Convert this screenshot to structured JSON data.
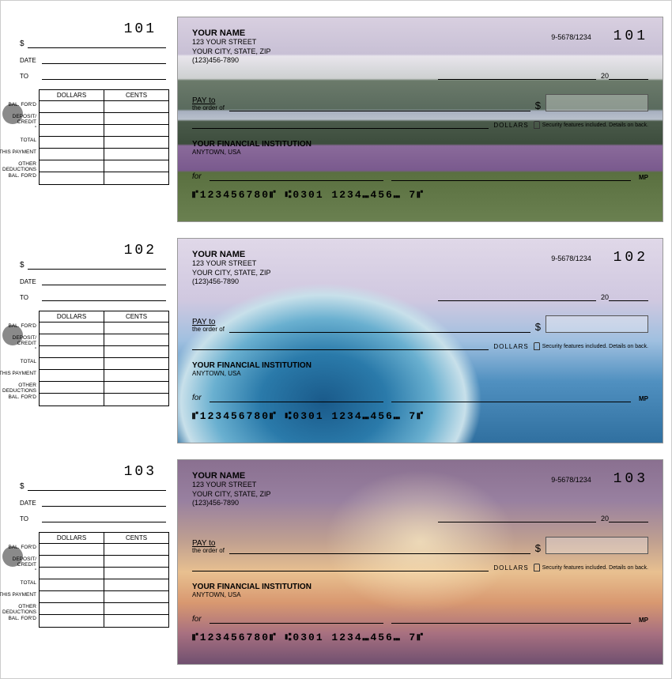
{
  "stub": {
    "date_label": "DATE",
    "to_label": "TO",
    "dollar_sym": "$",
    "ledger_headers": [
      "DOLLARS",
      "CENTS"
    ],
    "ledger_rows": [
      "BAL. FOR'D",
      "DEPOSIT/ CREDIT",
      "\"",
      "TOTAL",
      "THIS PAYMENT",
      "OTHER DEDUCTIONS",
      "BAL. FOR'D"
    ]
  },
  "check_common": {
    "name": "YOUR NAME",
    "street": "123 YOUR STREET",
    "city": "YOUR CITY, STATE, ZIP",
    "phone": "(123)456-7890",
    "routing_display": "9-5678/1234",
    "year_prefix": "20",
    "pay_to": "PAY to",
    "order_of": "the order of",
    "dollar_sym": "$",
    "dollars_label": "DOLLARS",
    "security_text": "Security features included. Details on back.",
    "institution": "YOUR FINANCIAL INSTITUTION",
    "inst_city": "ANYTOWN, USA",
    "for_label": "for",
    "mp": "MP",
    "micr": "⑈123456780⑈  ⑆0301  1234⑉456⑉  7⑈"
  },
  "checks": [
    {
      "number": "101",
      "bg": "bg-mountain"
    },
    {
      "number": "102",
      "bg": "bg-wave"
    },
    {
      "number": "103",
      "bg": "bg-sky"
    }
  ]
}
